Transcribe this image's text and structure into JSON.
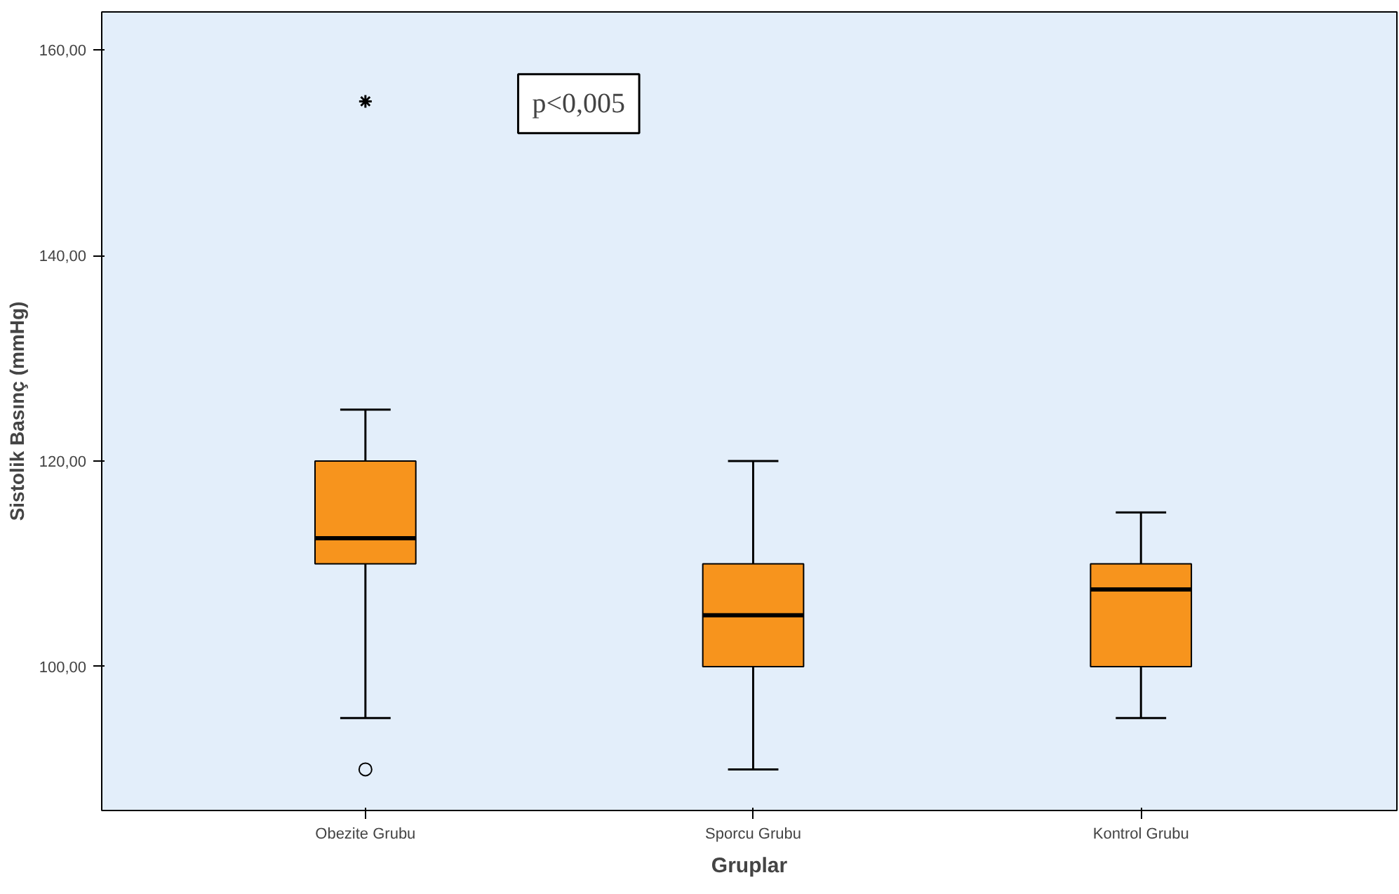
{
  "chart_data": {
    "type": "box",
    "categories": [
      "Obezite Grubu",
      "Sporcu Grubu",
      "Kontrol Grubu"
    ],
    "xlabel": "Gruplar",
    "ylabel": "Sistolik Basınç (mmHg)",
    "ylim": [
      86,
      163.7
    ],
    "yticks": [
      {
        "value": 100,
        "label": "100,00"
      },
      {
        "value": 120,
        "label": "120,00"
      },
      {
        "value": 140,
        "label": "140,00"
      },
      {
        "value": 160,
        "label": "160,00"
      }
    ],
    "grid": false,
    "color": "#f7941d",
    "boxes": [
      {
        "low": 95,
        "q1": 110,
        "median": 112.5,
        "q3": 120,
        "high": 125,
        "outliers": [
          90,
          155
        ]
      },
      {
        "low": 90,
        "q1": 100,
        "median": 105,
        "q3": 110,
        "high": 120
      },
      {
        "low": 95,
        "q1": 100,
        "median": 107.5,
        "q3": 110,
        "high": 115
      }
    ],
    "annotations": [
      "p<0,005"
    ]
  }
}
